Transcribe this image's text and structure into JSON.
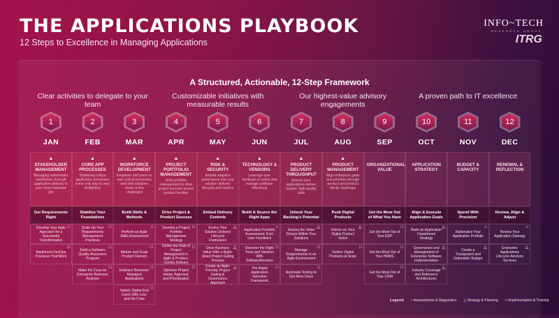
{
  "header": {
    "title": "THE APPLICATIONS PLAYBOOK",
    "subtitle": "12 Steps to Excellence in Managing Applications",
    "logo_name": "INFO~TECH",
    "logo_tagline": "RESEARCH GROUP",
    "logo_mark": "ITRG"
  },
  "framework_title": "A Structured, Actionable, 12-Step Framework",
  "groups": [
    "Clear activities to delegate to your team",
    "Customizable initiatives with measurable results",
    "Our highest-value advisory engagements",
    "A proven path to IT excellence"
  ],
  "icons": {
    "circle": "Assessments & Diagnostics",
    "triangle": "Strategy & Planning",
    "square": "Implementation & Training"
  },
  "legend": {
    "label": "Legend",
    "circle": "Assessments & Diagnostics",
    "triangle": "Strategy & Planning",
    "square": "Implementation & Training"
  },
  "steps": [
    {
      "num": "1",
      "month": "JAN",
      "locked": true,
      "title": "STAKEHOLDER MANAGEMENT",
      "desc": "Managing stakeholder satisfaction through application delivery is your most important job",
      "focus": "Get Requirements Right",
      "items": [
        [
          "Develop Your Agile Approach for a Successful Transformation",
          "square"
        ],
        [
          "Implement DevOps Practices That Work",
          "square"
        ]
      ]
    },
    {
      "num": "2",
      "month": "FEB",
      "locked": true,
      "title": "CORE APP PROCESSES",
      "desc": "Stabilizing critical application processes is the only way to stop firefighting",
      "focus": "Stabilize Your Foundations",
      "items": [
        [
          "Scale Up Your Requirements Management Practices",
          "square"
        ],
        [
          "Build a Software Quality Assurance Program",
          "square"
        ],
        [
          "Make the Case for Enterprise Business Analysis",
          "square"
        ]
      ]
    },
    {
      "num": "3",
      "month": "MAR",
      "locked": true,
      "title": "WORKFORCE DEVELOPMENT",
      "desc": "Empower end users to own critical processes and shift solutions closer to the challenges",
      "focus": "Build Skills & Methods",
      "items": [
        [
          "Perform an Agile Skills Assessment",
          "circle"
        ],
        [
          "Mature and Scale Product Owners",
          "square"
        ],
        [
          "Embrace Business-Managed Applications",
          "square"
        ],
        [
          "Satisfy Digital End Users With Low- and No-Code",
          "square"
        ]
      ]
    },
    {
      "num": "4",
      "month": "APR",
      "locked": true,
      "title": "PROJECT PORTFOLIO MANAGEMENT",
      "desc": "Unify portfolio management to drive project success across product families",
      "focus": "Drive Project & Product Success",
      "items": [
        [
          "Develop a Project Portfolio Management Strategy",
          "square"
        ],
        [
          "Define the Role of Project Management in Agile & Product-Centric Delivery",
          "square"
        ],
        [
          "Optimize Project Intake, Approval, and Prioritization",
          "square"
        ]
      ]
    },
    {
      "num": "5",
      "month": "MAY",
      "locked": true,
      "title": "RISK & SECURITY",
      "desc": "Embed adaptive governance into your solution delivery lifecycle and metrics",
      "focus": "Embed Delivery Controls",
      "items": [
        [
          "Evolve Your Solution Delivery Lifecycle Framework",
          "triangle"
        ],
        [
          "Drive Business Value With a Right-Sized Project Gating Process",
          "triangle"
        ],
        [
          "Create an Agile-Friendly Project Gating & Governance Approach",
          "triangle"
        ]
      ]
    },
    {
      "num": "6",
      "month": "JUN",
      "locked": true,
      "title": "TECHNOLOGY & VENDORS",
      "desc": "Leverage user feedback to select and manage software effectively",
      "focus": "Build & Source the Right Apps",
      "items": [
        [
          "Application Portfolio Assessment: End-User Feedback",
          "circle"
        ],
        [
          "Discover the Right Tools and Vendors With SoftwareReviews",
          "square"
        ],
        [
          "The Rapid Application Selection Framework",
          "square"
        ]
      ]
    },
    {
      "num": "7",
      "month": "JUL",
      "locked": true,
      "title": "PRODUCT DELIVERY THROUGHPUT",
      "desc": "Ensure your applications deliver trusted, high-quality data",
      "focus": "Unlock Your Backlog's Potential",
      "items": [
        [
          "Assess the Value Drivers Within Your Solutions",
          "triangle"
        ],
        [
          "Manage Requirements in an Agile Environment",
          "square"
        ],
        [
          "Automate Testing to Get More Done",
          "square"
        ]
      ]
    },
    {
      "num": "8",
      "month": "AUG",
      "locked": true,
      "title": "PRODUCT MANAGEMENT",
      "desc": "Align enterprise goals and priorities through product and product family roadmaps",
      "focus": "Push Digital Products",
      "items": [
        [
          "Deliver on Your Digital Product Vision",
          "triangle"
        ],
        [
          "Deliver Digital Products at Scale",
          "square"
        ]
      ]
    },
    {
      "num": "9",
      "month": "SEP",
      "locked": false,
      "title": "ORGANIZATIONAL VALUE",
      "desc": "",
      "focus": "Get the Most Out of What You Have",
      "items": [
        [
          "Get the Most Out of Your ERP",
          "square"
        ],
        [
          "Get the Most Out of Your HRMS",
          "square"
        ],
        [
          "Get the Most Out of Your CRM",
          "square"
        ]
      ]
    },
    {
      "num": "10",
      "month": "OCT",
      "locked": false,
      "title": "APPLICATION STRATEGY",
      "desc": "",
      "focus": "Align & Execute Application Goals",
      "items": [
        [
          "Build an Application Department Strategy",
          "triangle"
        ],
        [
          "Governance and Management of Enterprise Software Implementation",
          "triangle"
        ],
        [
          "Industry Coverage and Reference Architectures",
          "triangle"
        ]
      ]
    },
    {
      "num": "11",
      "month": "NOV",
      "locked": false,
      "title": "BUDGET & CAPACITY",
      "desc": "",
      "focus": "Spend With Precision",
      "items": [
        [
          "Rationalize Your Application Portfolio",
          "circle"
        ],
        [
          "Create a Transparent and Defensible Budget",
          "triangle"
        ]
      ]
    },
    {
      "num": "12",
      "month": "DEC",
      "locked": false,
      "title": "RENEWAL & REFLECTION",
      "desc": "",
      "focus": "Review, Align & Adjust",
      "items": [
        [
          "Review Your Application Strategy",
          "circle"
        ],
        [
          "Enterprise Applications Lifecycle Advisory Services",
          "triangle"
        ]
      ]
    }
  ]
}
